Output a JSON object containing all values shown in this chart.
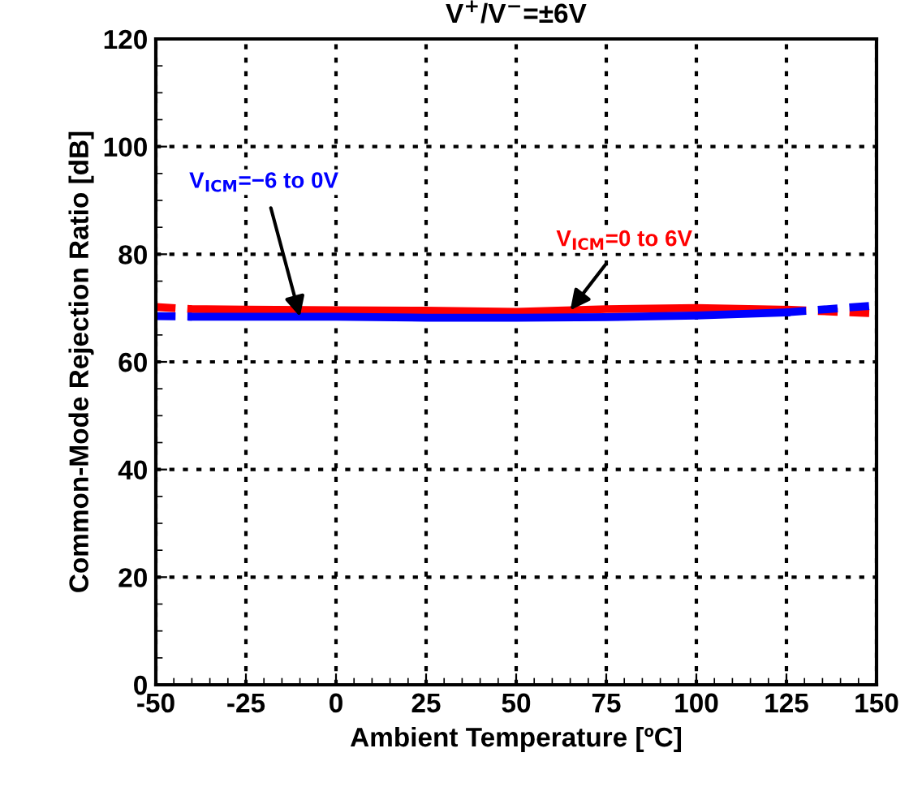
{
  "chart_data": {
    "type": "line",
    "title": "V$^{+}$/V$^{−}$=±6V",
    "xlabel": "Ambient Temperature [ºC]",
    "ylabel": "Common-Mode Rejection Ratio [dB]",
    "series": [
      {
        "color": "#ff0000",
        "line_style": "solid",
        "x": [
          -40,
          -25,
          0,
          25,
          50,
          75,
          100,
          125
        ],
        "values": [
          69.8,
          69.7,
          69.6,
          69.5,
          69.3,
          69.8,
          70,
          69.7
        ]
      },
      {
        "color": "#ff0000",
        "line_style": "dashed",
        "x": [
          -50,
          -40,
          40,
          125,
          150
        ],
        "values": [
          70.2,
          69.8,
          null,
          69.7,
          69
        ]
      },
      {
        "color": "#0000ff",
        "line_style": "solid",
        "x": [
          -40,
          -25,
          0,
          25,
          50,
          75,
          100,
          125
        ],
        "values": [
          68.4,
          68.4,
          68.4,
          68.2,
          68.2,
          68.3,
          68.6,
          69.2
        ]
      },
      {
        "color": "#0000ff",
        "line_style": "dashed",
        "x": [
          -50,
          -40,
          40,
          125,
          150
        ],
        "values": [
          68.5,
          68.4,
          null,
          69.2,
          70.5
        ]
      }
    ],
    "annotations": [
      {
        "text": "V$_{ICM}$=−6 to 0V",
        "x": -10,
        "y": 68.4
      },
      {
        "text": "V$_{ICM}$=0 to 6V",
        "x": 65,
        "y": 69.6
      }
    ],
    "xlim": [
      -50,
      150
    ],
    "xticks": [
      -50,
      -25,
      0,
      25,
      50,
      75,
      100,
      125,
      150
    ],
    "ylim": [
      0,
      120
    ],
    "yticks": [
      0,
      20,
      40,
      60,
      80,
      100,
      120
    ],
    "grid": true
  }
}
